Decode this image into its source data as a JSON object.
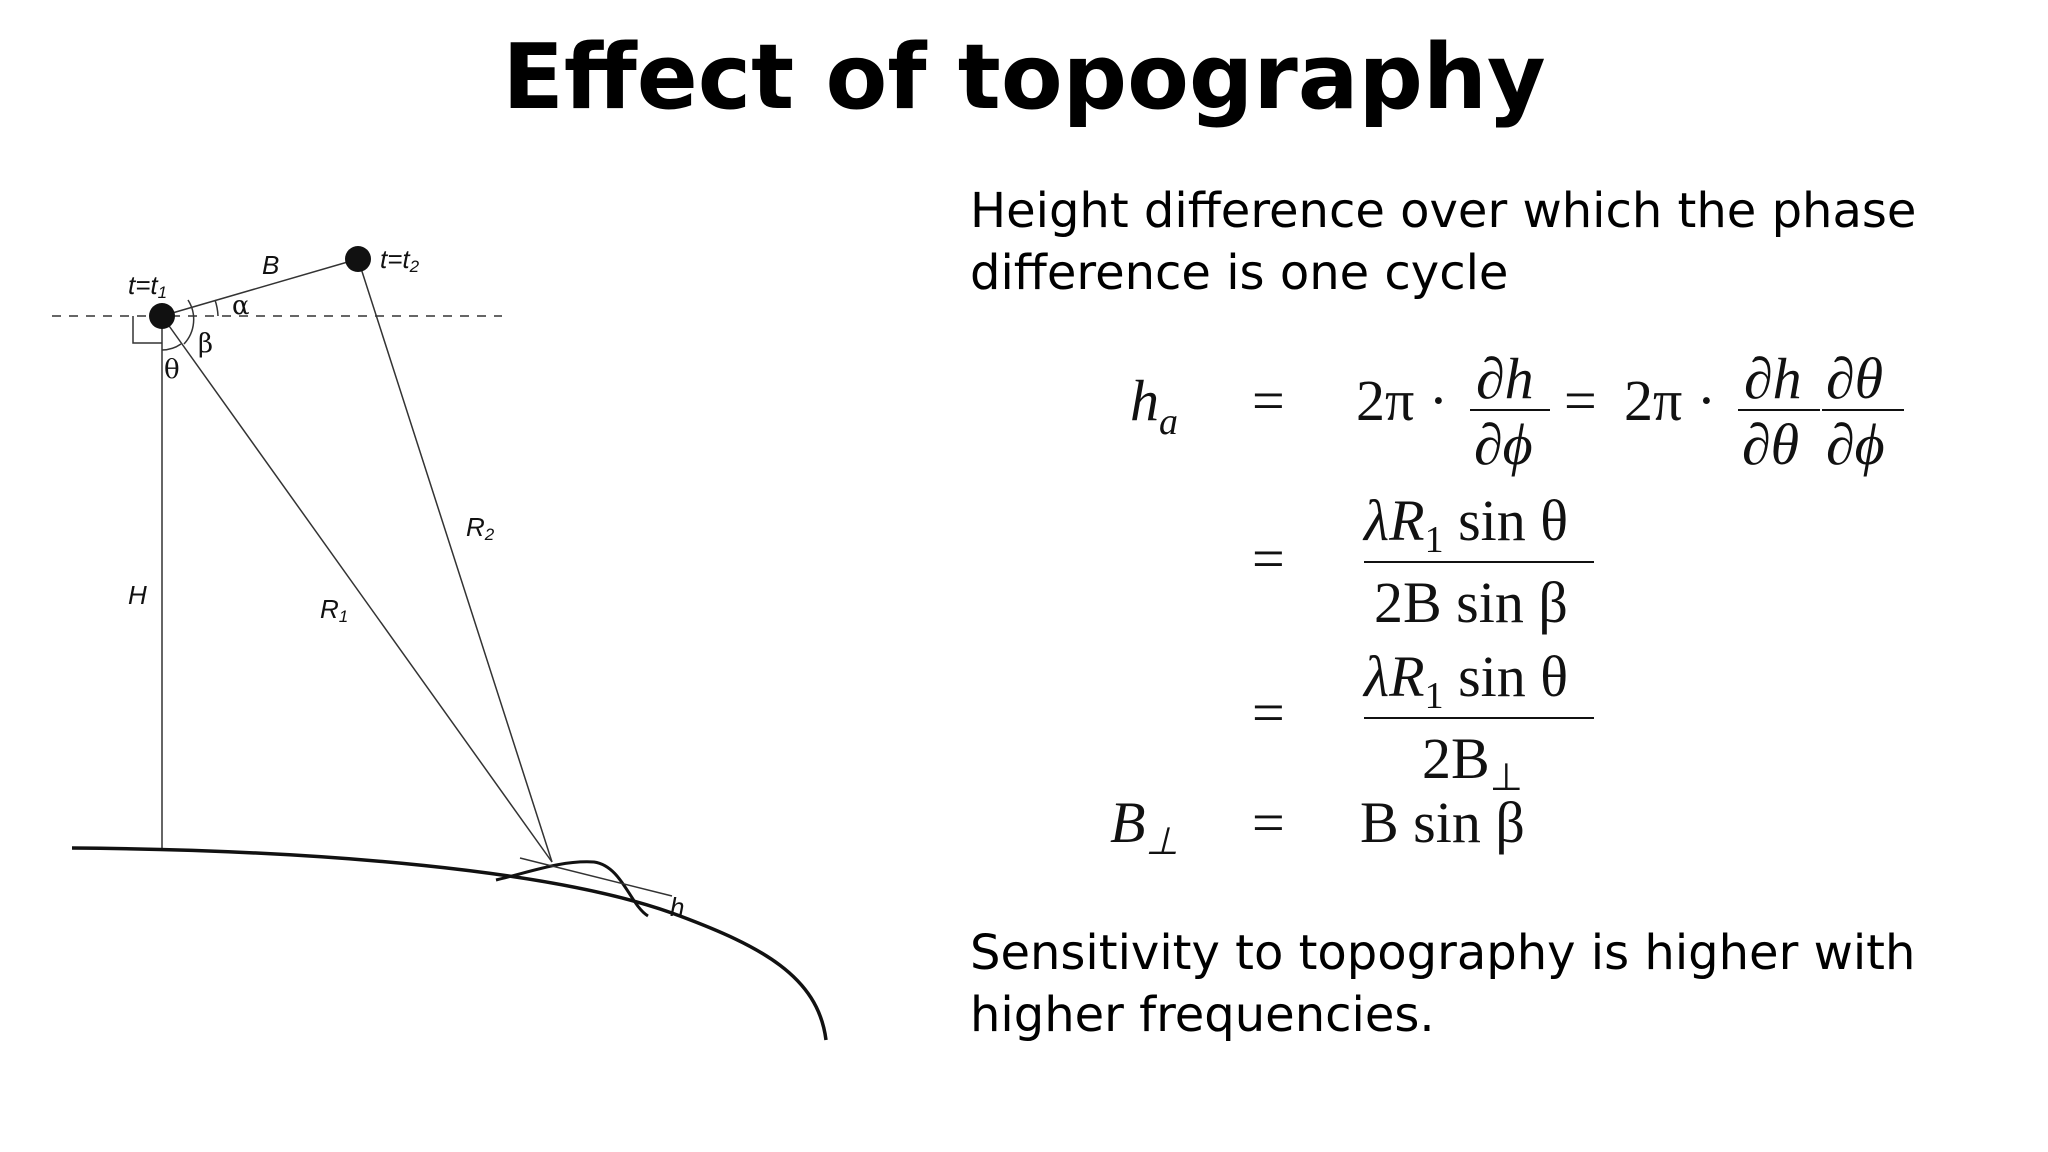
{
  "slide": {
    "title": "Effect of topography",
    "intro_text": "Height difference over which the phase difference is one cycle",
    "sensitivity_text": "Sensitivity to topography is higher with higher frequencies."
  },
  "diagram": {
    "labels": {
      "t1": "t=t",
      "t1_sub": "1",
      "t2": "t=t",
      "t2_sub": "2",
      "baseline": "B",
      "alpha": "α",
      "beta": "β",
      "theta": "θ",
      "height": "H",
      "range1": "R",
      "range1_sub": "1",
      "range2": "R",
      "range2_sub": "2",
      "terrain": "h"
    }
  },
  "equations": {
    "row1": {
      "lhs": "h",
      "lhs_sub": "a",
      "eq": "=",
      "coef1": "2π ·",
      "frac1_num": "∂h",
      "frac1_den": "∂ϕ",
      "eq2": "=",
      "coef2": "2π ·",
      "frac2_num": "∂h",
      "frac2_den": "∂θ",
      "frac3_num": "∂θ",
      "frac3_den": "∂ϕ"
    },
    "row2": {
      "eq": "=",
      "num": "λR",
      "num_sub": "1",
      "num_tail": " sin θ",
      "den": "2B sin β"
    },
    "row3": {
      "eq": "=",
      "num": "λR",
      "num_sub": "1",
      "num_tail": " sin θ",
      "den": "2B",
      "den_sub": "⊥"
    },
    "row4": {
      "lhs": "B",
      "lhs_sub": "⊥",
      "eq": "=",
      "rhs": "B sin β"
    }
  }
}
